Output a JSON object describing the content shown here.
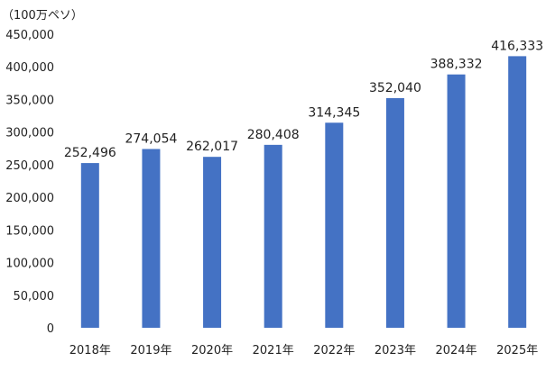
{
  "chart_data": {
    "type": "bar",
    "unit_label": "（100万ペソ）",
    "categories": [
      "2018年",
      "2019年",
      "2020年",
      "2021年",
      "2022年",
      "2023年",
      "2024年",
      "2025年"
    ],
    "values": [
      252496,
      274054,
      262017,
      280408,
      314345,
      352040,
      388332,
      416333
    ],
    "value_labels": [
      "252,496",
      "274,054",
      "262,017",
      "280,408",
      "314,345",
      "352,040",
      "388,332",
      "416,333"
    ],
    "ylim": [
      0,
      450000
    ],
    "yticks": [
      0,
      50000,
      100000,
      150000,
      200000,
      250000,
      300000,
      350000,
      400000,
      450000
    ],
    "ytick_labels": [
      "0",
      "50,000",
      "100,000",
      "150,000",
      "200,000",
      "250,000",
      "300,000",
      "350,000",
      "400,000",
      "450,000"
    ],
    "grid": false,
    "legend": "none",
    "bar_color": "#4472C4"
  }
}
